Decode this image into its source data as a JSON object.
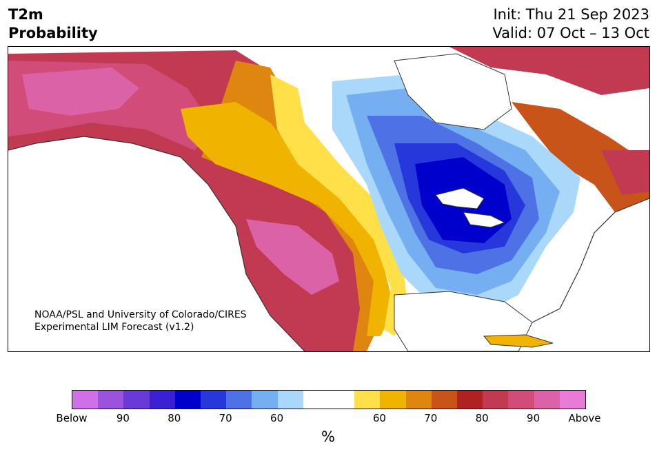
{
  "header": {
    "title_line1": "T2m",
    "title_line2": "Probability",
    "init": "Init: Thu 21 Sep 2023",
    "valid": "Valid: 07 Oct – 13 Oct"
  },
  "map": {
    "credit_line1": "NOAA/PSL and University of Colorado/CIRES",
    "credit_line2": "Experimental LIM Forecast (v1.2)"
  },
  "colorbar": {
    "colors": [
      "#d070e8",
      "#9b52dc",
      "#6a3ad8",
      "#3a20d2",
      "#0000cc",
      "#2638dc",
      "#4e72e6",
      "#76aef2",
      "#aad8fa",
      "#ffffff",
      "#ffffff",
      "#ffe048",
      "#f0b400",
      "#de8610",
      "#c8541a",
      "#b02222",
      "#c23a52",
      "#d24c7a",
      "#dc62a8",
      "#e87ad8"
    ],
    "ticks": [
      "Below",
      "90",
      "80",
      "70",
      "60",
      "60",
      "70",
      "80",
      "90",
      "Above"
    ],
    "unit": "%"
  },
  "colors": {
    "below_strong": "#0000cc",
    "above_strong": "#b02222",
    "neutral": "#ffffff"
  }
}
